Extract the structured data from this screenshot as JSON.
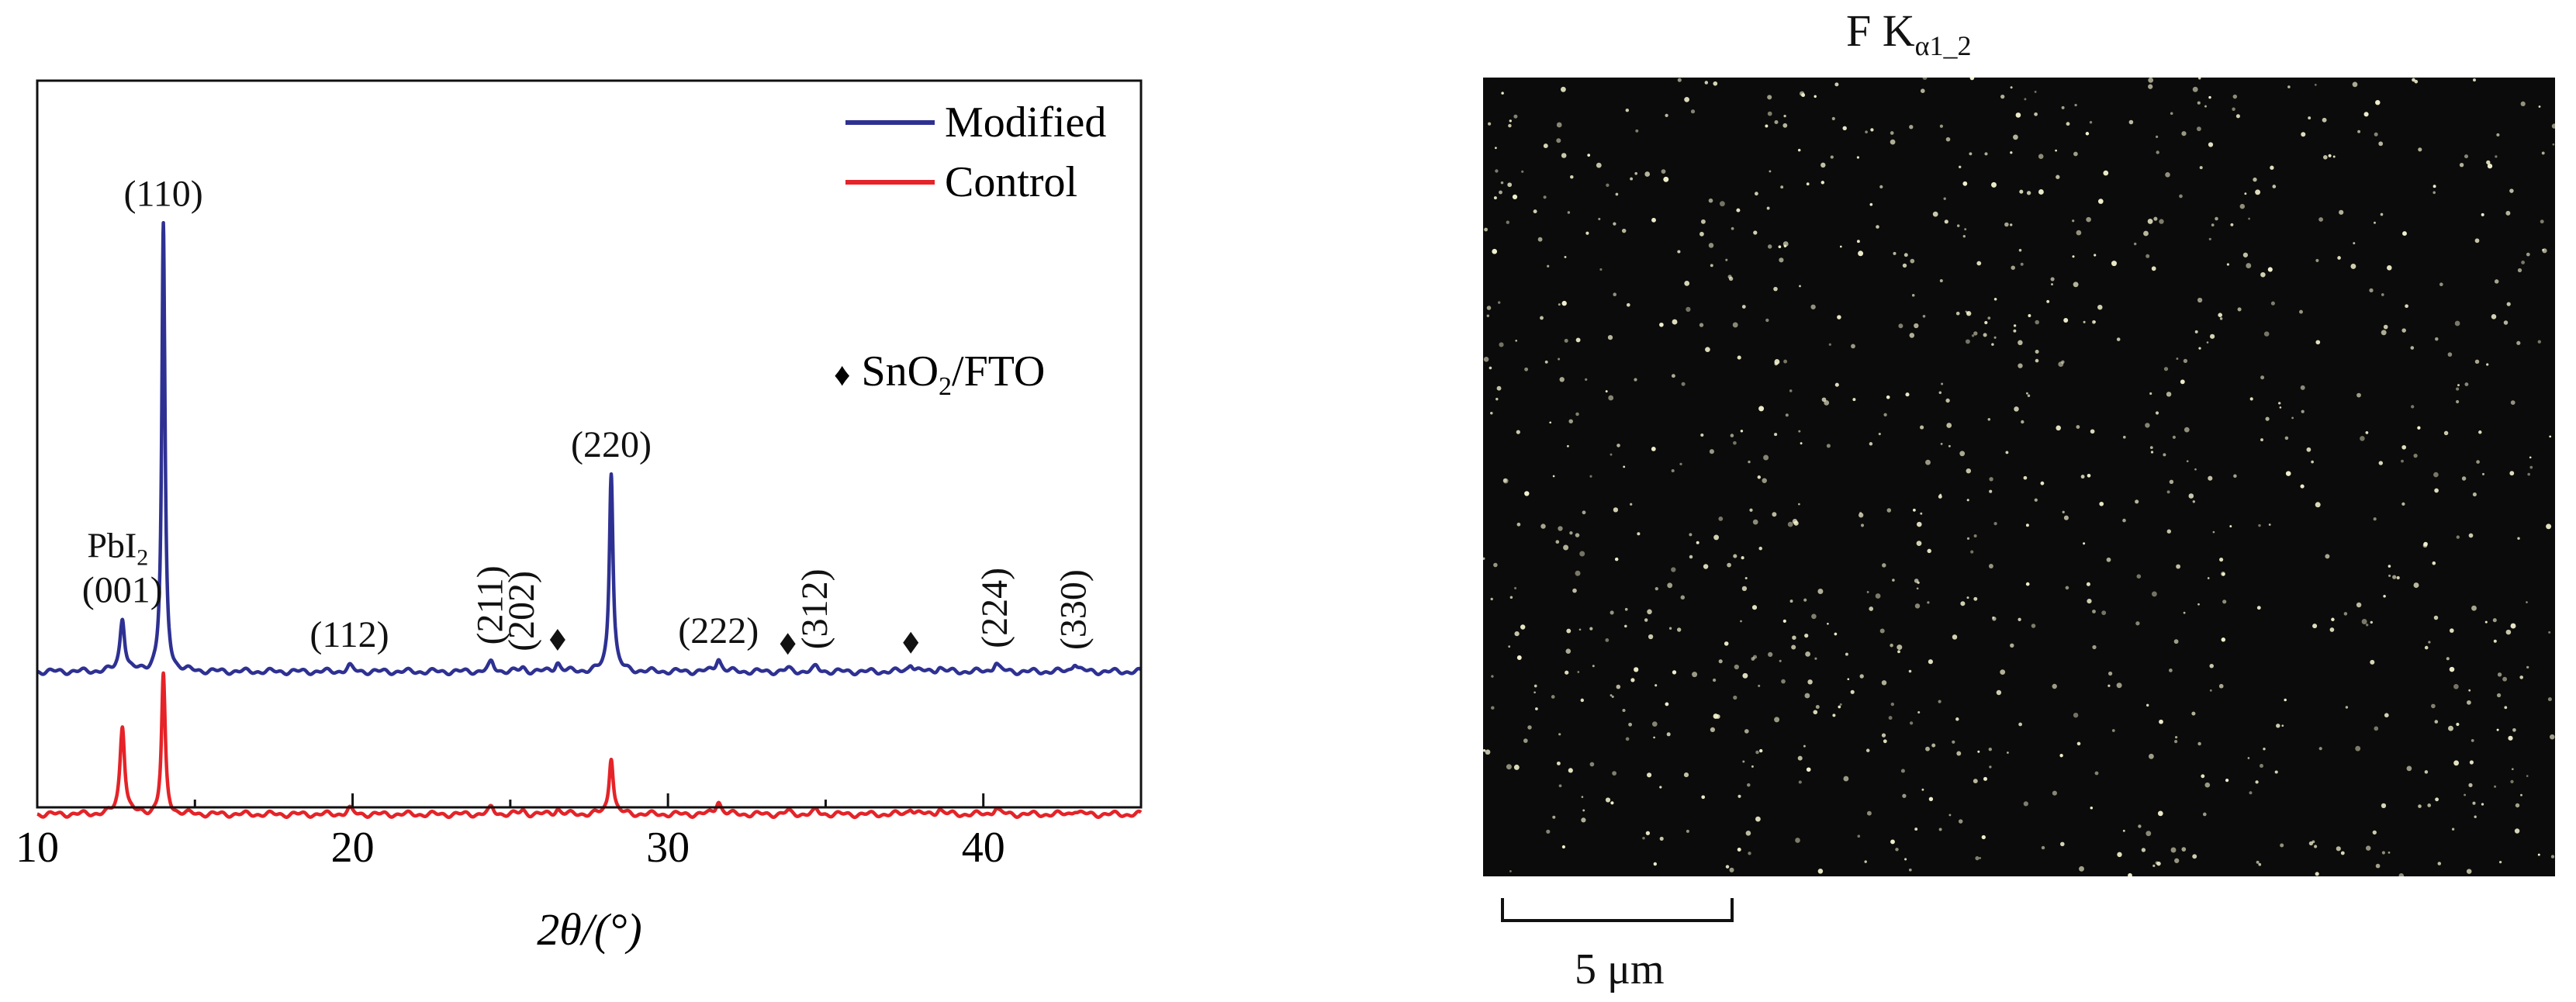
{
  "chart_data": [
    {
      "type": "line",
      "title": "",
      "xlabel": "2θ/(°)",
      "ylabel": "",
      "xlim": [
        10,
        45
      ],
      "xticks": [
        10,
        20,
        30,
        40
      ],
      "legend_position": "top-right",
      "series": [
        {
          "name": "Modified",
          "color": "#2e3192",
          "baseline": 0.32,
          "peaks": [
            {
              "x": 12.7,
              "height": 0.12,
              "width": 0.09
            },
            {
              "x": 14.0,
              "height": 1.0,
              "width": 0.06
            },
            {
              "x": 19.9,
              "height": 0.012,
              "width": 0.1
            },
            {
              "x": 24.4,
              "height": 0.02,
              "width": 0.1
            },
            {
              "x": 25.4,
              "height": 0.008,
              "width": 0.1
            },
            {
              "x": 26.5,
              "height": 0.02,
              "width": 0.1
            },
            {
              "x": 28.2,
              "height": 0.45,
              "width": 0.07
            },
            {
              "x": 31.6,
              "height": 0.03,
              "width": 0.1
            },
            {
              "x": 33.8,
              "height": 0.006,
              "width": 0.1
            },
            {
              "x": 34.7,
              "height": 0.01,
              "width": 0.1
            },
            {
              "x": 37.7,
              "height": 0.018,
              "width": 0.1
            },
            {
              "x": 38.6,
              "height": 0.01,
              "width": 0.1
            },
            {
              "x": 40.4,
              "height": 0.02,
              "width": 0.1
            },
            {
              "x": 42.9,
              "height": 0.02,
              "width": 0.1
            }
          ]
        },
        {
          "name": "Control",
          "color": "#e52328",
          "baseline": 0.0,
          "peaks": [
            {
              "x": 12.7,
              "height": 0.2,
              "width": 0.09
            },
            {
              "x": 14.0,
              "height": 0.31,
              "width": 0.07
            },
            {
              "x": 19.9,
              "height": 0.012,
              "width": 0.1
            },
            {
              "x": 24.4,
              "height": 0.014,
              "width": 0.1
            },
            {
              "x": 25.4,
              "height": 0.008,
              "width": 0.1
            },
            {
              "x": 26.5,
              "height": 0.012,
              "width": 0.1
            },
            {
              "x": 28.2,
              "height": 0.13,
              "width": 0.08
            },
            {
              "x": 31.6,
              "height": 0.03,
              "width": 0.1
            },
            {
              "x": 33.8,
              "height": 0.006,
              "width": 0.1
            },
            {
              "x": 34.7,
              "height": 0.008,
              "width": 0.1
            },
            {
              "x": 37.7,
              "height": 0.014,
              "width": 0.1
            },
            {
              "x": 38.6,
              "height": 0.012,
              "width": 0.1
            },
            {
              "x": 40.4,
              "height": 0.014,
              "width": 0.1
            },
            {
              "x": 42.9,
              "height": 0.01,
              "width": 0.1
            }
          ]
        }
      ],
      "peak_labels": [
        {
          "x": 12.7,
          "text": "(001)",
          "extra": "PbI",
          "extra_sub": "2",
          "rotated": false
        },
        {
          "x": 14.0,
          "text": "(110)",
          "rotated": false
        },
        {
          "x": 19.9,
          "text": "(112)",
          "rotated": false
        },
        {
          "x": 24.4,
          "text": "(211)",
          "rotated": true
        },
        {
          "x": 25.4,
          "text": "(202)",
          "rotated": true
        },
        {
          "x": 28.2,
          "text": "(220)",
          "rotated": false
        },
        {
          "x": 31.6,
          "text": "(222)",
          "rotated": false
        },
        {
          "x": 34.7,
          "text": "(312)",
          "rotated": true
        },
        {
          "x": 40.4,
          "text": "(224)",
          "rotated": true
        },
        {
          "x": 42.9,
          "text": "(330)",
          "rotated": true
        }
      ],
      "substrate_markers": [
        26.5,
        33.8,
        37.7
      ],
      "substrate_legend": {
        "symbol": "♦",
        "text": "SnO",
        "sub": "2",
        "text_after": "/FTO"
      }
    }
  ],
  "eds_map": {
    "title_main": "F K",
    "title_sub": "α1_2",
    "background": "#0b0b0b",
    "dot_color": "#f4f2cf",
    "scale_label": "5 μm"
  }
}
